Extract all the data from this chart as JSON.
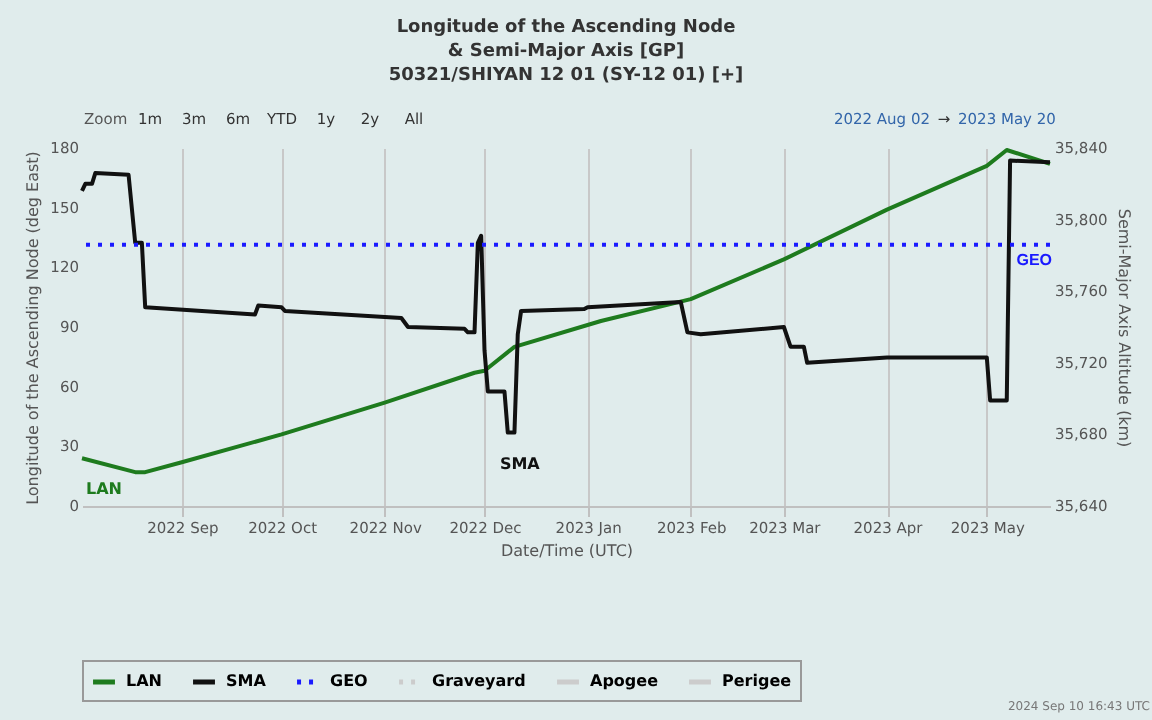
{
  "chart_data": {
    "type": "line",
    "title": [
      "Longitude of the Ascending Node",
      "& Semi-Major Axis [GP]",
      "50321/SHIYAN 12 01 (SY-12 01) [+]"
    ],
    "xlabel": "Date/Time (UTC)",
    "ylabel": "Longitude of the Ascending Node (deg East)",
    "y2label": "Semi-Major Axis Altitude (km)",
    "xlim": [
      "2022-08-02",
      "2023-05-20"
    ],
    "xticks": [
      {
        "value": "2022-09-01",
        "label": "2022 Sep"
      },
      {
        "value": "2022-10-01",
        "label": "2022 Oct"
      },
      {
        "value": "2022-11-01",
        "label": "2022 Nov"
      },
      {
        "value": "2022-12-01",
        "label": "2022 Dec"
      },
      {
        "value": "2023-01-01",
        "label": "2023 Jan"
      },
      {
        "value": "2023-02-01",
        "label": "2023 Feb"
      },
      {
        "value": "2023-03-01",
        "label": "2023 Mar"
      },
      {
        "value": "2023-04-01",
        "label": "2023 Apr"
      },
      {
        "value": "2023-05-01",
        "label": "2023 May"
      }
    ],
    "ylim": [
      0,
      180
    ],
    "yticks": [
      0,
      30,
      60,
      90,
      120,
      150,
      180
    ],
    "y2lim": [
      35640,
      35840
    ],
    "y2ticks": [
      {
        "value": 35640,
        "label": "35,640"
      },
      {
        "value": 35680,
        "label": "35,680"
      },
      {
        "value": 35720,
        "label": "35,720"
      },
      {
        "value": 35760,
        "label": "35,760"
      },
      {
        "value": 35800,
        "label": "35,800"
      },
      {
        "value": 35840,
        "label": "35,840"
      }
    ],
    "grid": "x",
    "legend": "bottom",
    "marker": "none",
    "series": [
      {
        "name": "LAN",
        "color": "#1e7b1e",
        "line_style": "solid",
        "x": [
          "2022-08-02",
          "2022-08-18",
          "2022-08-21",
          "2022-09-01",
          "2022-10-01",
          "2022-11-01",
          "2022-11-28",
          "2022-12-01",
          "2022-12-10",
          "2023-01-05",
          "2023-02-01",
          "2023-03-01",
          "2023-04-01",
          "2023-05-01",
          "2023-05-07",
          "2023-05-20"
        ],
        "values": [
          24,
          17,
          17,
          22,
          36,
          52,
          67,
          68,
          80,
          93,
          104,
          124,
          149,
          171,
          179,
          172
        ]
      },
      {
        "name": "SMA",
        "color": "#111111",
        "line_style": "solid",
        "axis": "y2",
        "x": [
          "2022-08-02",
          "2022-08-03",
          "2022-08-05",
          "2022-08-06",
          "2022-08-16",
          "2022-08-18",
          "2022-08-20",
          "2022-08-21",
          "2022-09-23",
          "2022-09-24",
          "2022-10-01",
          "2022-10-02",
          "2022-11-06",
          "2022-11-08",
          "2022-11-25",
          "2022-11-26",
          "2022-11-28",
          "2022-11-29",
          "2022-11-30",
          "2022-12-01",
          "2022-12-02",
          "2022-12-07",
          "2022-12-08",
          "2022-12-10",
          "2022-12-11",
          "2022-12-12",
          "2022-12-31",
          "2023-01-01",
          "2023-01-29",
          "2023-01-31",
          "2023-02-04",
          "2023-03-01",
          "2023-03-03",
          "2023-03-07",
          "2023-03-08",
          "2023-04-01",
          "2023-05-01",
          "2023-05-02",
          "2023-05-07",
          "2023-05-08",
          "2023-05-20"
        ],
        "values": [
          35816,
          35820,
          35820,
          35826,
          35825,
          35787,
          35787,
          35751,
          35747,
          35752,
          35751,
          35749,
          35745,
          35740,
          35739,
          35737,
          35737,
          35787,
          35791,
          35727,
          35704,
          35704,
          35681,
          35681,
          35736,
          35749,
          35750,
          35751,
          35754,
          35737,
          35736,
          35740,
          35729,
          35729,
          35720,
          35723,
          35723,
          35699,
          35699,
          35833,
          35832
        ]
      },
      {
        "name": "Graveyard",
        "color": "#cccccc",
        "line_style": "dotted"
      },
      {
        "name": "Apogee",
        "color": "#cccccc",
        "line_style": "solid"
      },
      {
        "name": "Perigee",
        "color": "#cccccc",
        "line_style": "solid"
      }
    ],
    "ref_lines": [
      {
        "axis": "y2",
        "value": 35786,
        "label": "GEO",
        "color": "#1a1aff",
        "line_style": "dotted"
      }
    ],
    "annotations": [
      "Zoom",
      "1m",
      "3m",
      "6m",
      "YTD",
      "1y",
      "2y",
      "All",
      "2022 Aug 02",
      "→",
      "2023 May 20",
      "2024 Sep 10 16:43 UTC"
    ]
  }
}
